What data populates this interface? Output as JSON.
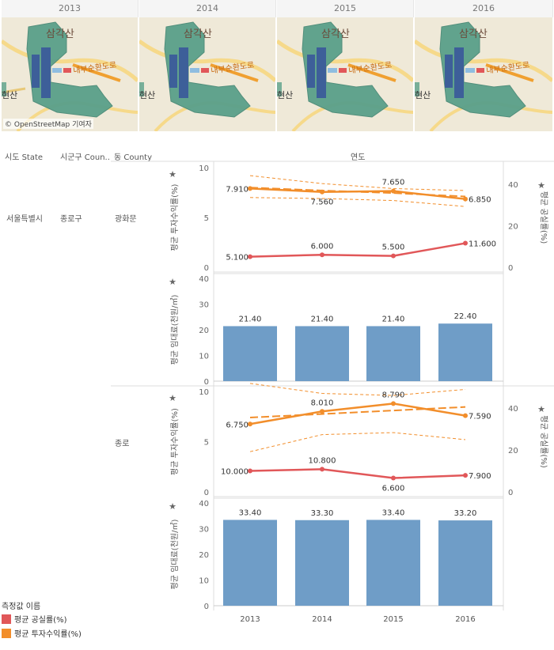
{
  "map_panels": {
    "years": [
      "2013",
      "2014",
      "2015",
      "2016"
    ],
    "label_mountain": "삼각산",
    "label_road": "내부순환도로",
    "label_edge": "현산",
    "attribution": "© OpenStreetMap 기여자"
  },
  "headers": {
    "col_state": "시도 State",
    "col_county": "시군구 Coun..",
    "col_dong": "동 County",
    "col_year": "연도"
  },
  "rows": {
    "state": "서울특별시",
    "county": "종로구",
    "dong_1": "광화문",
    "dong_2": "종로"
  },
  "axis_titles": {
    "left_line": "평균 투자수익률(%)",
    "right_line": "평균 공실률(%)",
    "bar": "평균 임대료(천원/㎡)"
  },
  "legend": {
    "title": "측정값 이름",
    "vacancy": "평균 공실률(%)",
    "return": "평균 투자수익률(%)"
  },
  "colors": {
    "vacancy": "#e15759",
    "return": "#f28e2b",
    "bar": "#6f9dc7",
    "map_green": "#5aa08a",
    "map_blue": "#3d5f99",
    "map_bg": "#efe9d8",
    "grid": "#e8e8e8"
  },
  "chart_data": [
    {
      "type": "line",
      "panel": "광화문 - 투자수익률/공실률",
      "x": [
        "2013",
        "2014",
        "2015",
        "2016"
      ],
      "series": [
        {
          "name": "평균 투자수익률(%)",
          "axis": "left",
          "values": [
            7.91,
            7.56,
            7.65,
            6.85
          ],
          "labels": [
            "7.910",
            "7.560",
            "7.650",
            "6.850"
          ],
          "trend": [
            8.0,
            7.7,
            7.45,
            7.1
          ],
          "band_upper": [
            9.2,
            8.4,
            7.9,
            7.7
          ],
          "band_lower": [
            7.0,
            6.9,
            6.7,
            6.1
          ]
        },
        {
          "name": "평균 공실률(%)",
          "axis": "right",
          "values": [
            5.1,
            6.0,
            5.5,
            11.6
          ],
          "labels": [
            "5.100",
            "6.000",
            "5.500",
            "11.600"
          ]
        }
      ],
      "ylim_left": [
        0,
        10
      ],
      "yticks_left": [
        0,
        5,
        10
      ],
      "ylim_right": [
        0,
        48
      ],
      "yticks_right": [
        0,
        20,
        40
      ]
    },
    {
      "type": "bar",
      "panel": "광화문 - 임대료",
      "categories": [
        "2013",
        "2014",
        "2015",
        "2016"
      ],
      "values": [
        21.4,
        21.4,
        21.4,
        22.4
      ],
      "labels": [
        "21.40",
        "21.40",
        "21.40",
        "22.40"
      ],
      "ylim": [
        0,
        40
      ],
      "yticks": [
        0,
        10,
        20,
        30,
        40
      ]
    },
    {
      "type": "line",
      "panel": "종로 - 투자수익률/공실률",
      "x": [
        "2013",
        "2014",
        "2015",
        "2016"
      ],
      "series": [
        {
          "name": "평균 투자수익률(%)",
          "axis": "left",
          "values": [
            6.75,
            8.01,
            8.79,
            7.59
          ],
          "labels": [
            "6.750",
            "8.010",
            "8.790",
            "7.590"
          ],
          "trend": [
            7.4,
            7.75,
            8.1,
            8.45
          ],
          "band_upper": [
            10.8,
            9.8,
            9.6,
            10.2
          ],
          "band_lower": [
            4.0,
            5.7,
            5.9,
            5.2
          ]
        },
        {
          "name": "평균 공실률(%)",
          "axis": "right",
          "values": [
            10.0,
            10.8,
            6.6,
            7.9
          ],
          "labels": [
            "10.000",
            "10.800",
            "6.600",
            "7.900"
          ]
        }
      ],
      "ylim_left": [
        0,
        10
      ],
      "yticks_left": [
        0,
        5,
        10
      ],
      "ylim_right": [
        0,
        48
      ],
      "yticks_right": [
        0,
        20,
        40
      ]
    },
    {
      "type": "bar",
      "panel": "종로 - 임대료",
      "categories": [
        "2013",
        "2014",
        "2015",
        "2016"
      ],
      "values": [
        33.4,
        33.3,
        33.4,
        33.2
      ],
      "labels": [
        "33.40",
        "33.30",
        "33.40",
        "33.20"
      ],
      "ylim": [
        0,
        40
      ],
      "yticks": [
        0,
        10,
        20,
        30,
        40
      ]
    }
  ]
}
